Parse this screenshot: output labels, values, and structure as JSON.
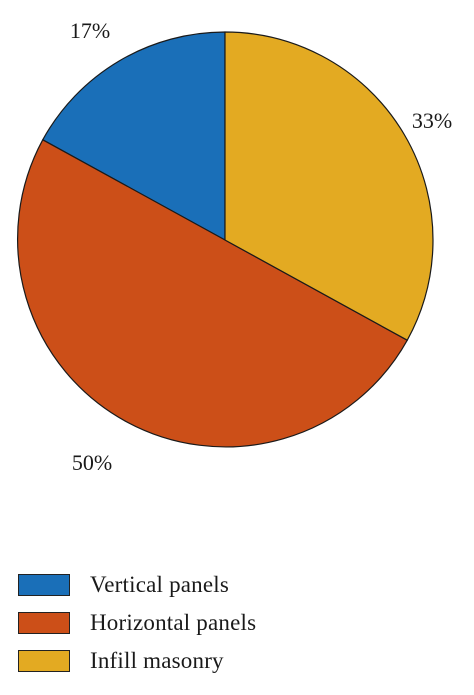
{
  "chart_data": {
    "type": "pie",
    "slices": [
      {
        "name": "Vertical panels",
        "value": 17,
        "label": "17%",
        "color": "#1a6fb8"
      },
      {
        "name": "Horizontal panels",
        "value": 50,
        "label": "50%",
        "color": "#cc4f18"
      },
      {
        "name": "Infill masonry",
        "value": 33,
        "label": "33%",
        "color": "#e3aa22"
      }
    ],
    "legend_position": "bottom-left"
  }
}
